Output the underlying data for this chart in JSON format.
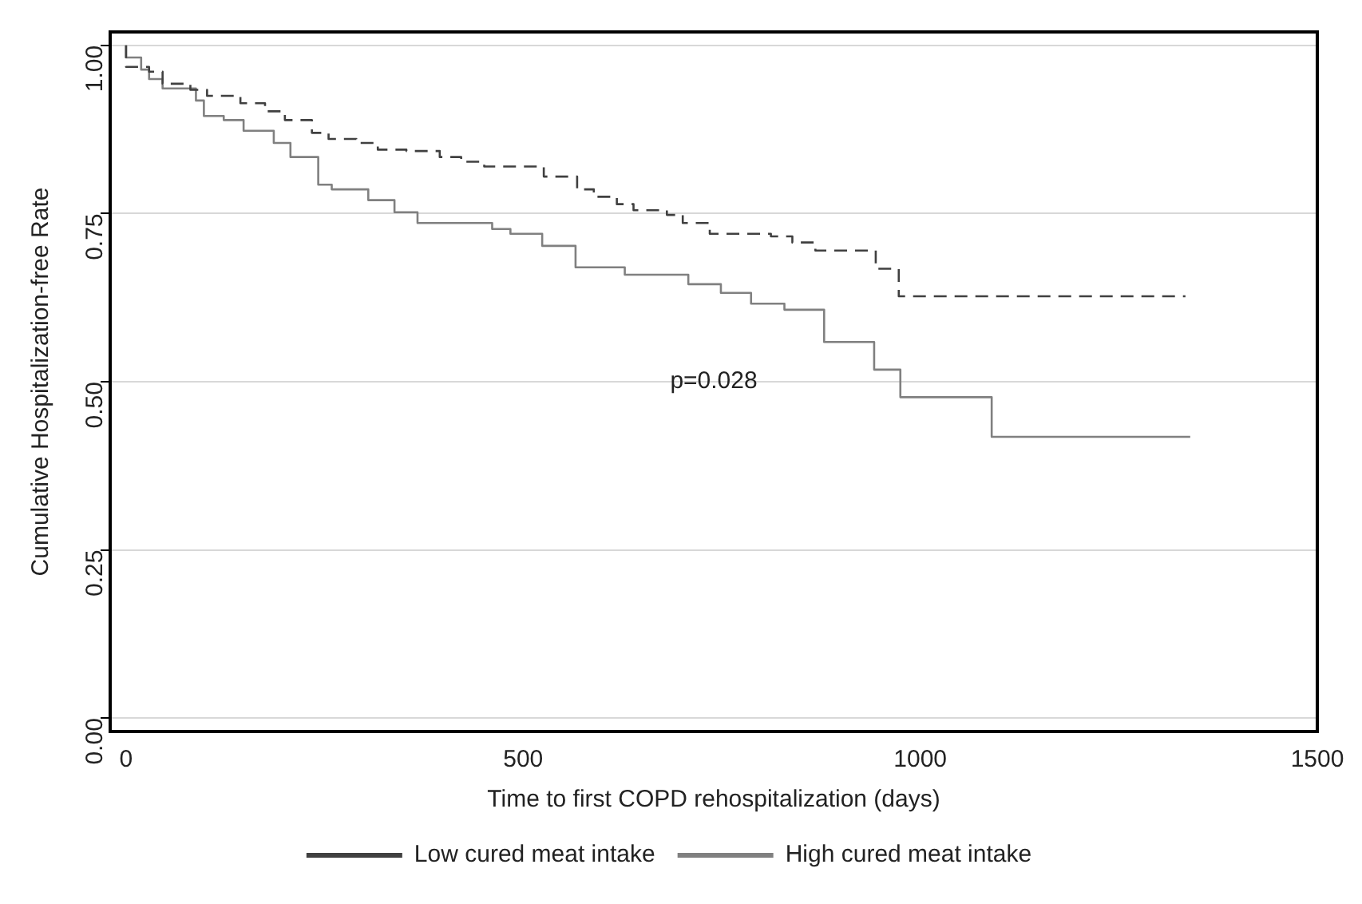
{
  "chart_data": {
    "type": "step",
    "xlabel": "Time to first COPD rehospitalization (days)",
    "ylabel": "Cumulative Hospitalization-free Rate",
    "xlim": [
      -20,
      1500
    ],
    "xticks": [
      0,
      500,
      1000,
      1500
    ],
    "ylim": [
      -0.02,
      1.02
    ],
    "yticks": [
      {
        "value": 0,
        "label": "0.00"
      },
      {
        "value": 0.25,
        "label": "0.25"
      },
      {
        "value": 0.5,
        "label": "0.50"
      },
      {
        "value": 0.75,
        "label": "0.75"
      },
      {
        "value": 1,
        "label": "1.00"
      }
    ],
    "grid": "y",
    "legend": "bottom",
    "annotations": [
      "p=0.028"
    ],
    "series": [
      {
        "name": "Low cured meat intake",
        "color": "#404040",
        "line_style": "dashed",
        "x": [
          0,
          29,
          46,
          81,
          102,
          144,
          175,
          200,
          234,
          255,
          290,
          317,
          353,
          395,
          422,
          451,
          526,
          568,
          589,
          618,
          639,
          681,
          701,
          735,
          812,
          839,
          868,
          944,
          973,
          1177,
          1334
        ],
        "values": [
          1.0,
          0.968,
          0.961,
          0.943,
          0.934,
          0.925,
          0.914,
          0.902,
          0.889,
          0.87,
          0.861,
          0.855,
          0.845,
          0.843,
          0.834,
          0.827,
          0.82,
          0.805,
          0.786,
          0.775,
          0.764,
          0.755,
          0.748,
          0.736,
          0.72,
          0.716,
          0.707,
          0.695,
          0.668,
          0.627,
          0.627
        ]
      },
      {
        "name": "High cured meat intake",
        "color": "#808080",
        "line_style": "solid",
        "x": [
          0,
          19,
          29,
          46,
          88,
          98,
          123,
          148,
          186,
          207,
          242,
          259,
          305,
          338,
          367,
          461,
          484,
          524,
          566,
          628,
          708,
          749,
          787,
          829,
          879,
          942,
          975,
          1090,
          1286,
          1340
        ],
        "values": [
          1.0,
          0.982,
          0.964,
          0.95,
          0.936,
          0.918,
          0.895,
          0.889,
          0.873,
          0.855,
          0.834,
          0.793,
          0.786,
          0.77,
          0.752,
          0.736,
          0.727,
          0.72,
          0.702,
          0.67,
          0.659,
          0.645,
          0.632,
          0.616,
          0.607,
          0.559,
          0.518,
          0.477,
          0.418,
          0.418
        ]
      }
    ]
  }
}
